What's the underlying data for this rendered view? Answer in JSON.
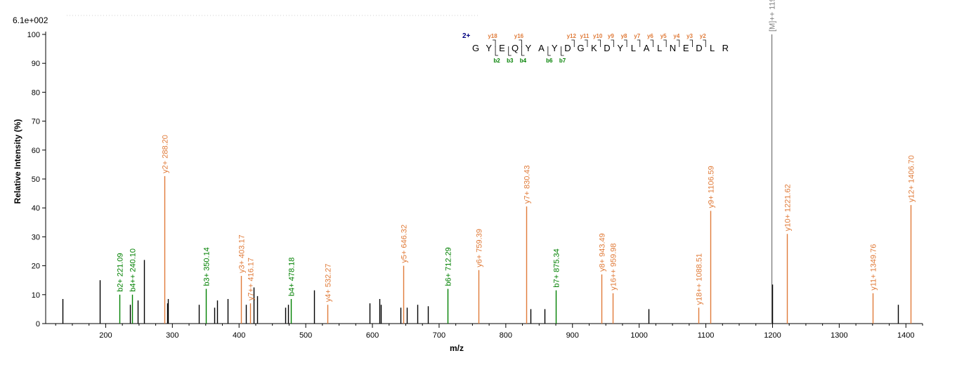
{
  "chart_data": {
    "type": "bar",
    "scale_label": "6.1e+002",
    "xlabel": "m/z",
    "ylabel": "Relative   Intensity (%)",
    "xlim": [
      110,
      1425
    ],
    "ylim": [
      0,
      100
    ],
    "x_ticks": [
      200,
      300,
      400,
      500,
      600,
      700,
      800,
      900,
      1000,
      1100,
      1200,
      1300,
      1400
    ],
    "y_ticks": [
      0,
      10,
      20,
      30,
      40,
      50,
      60,
      70,
      80,
      90,
      100
    ],
    "colors": {
      "b": "#008000",
      "y": "#e07b39",
      "precursor": "#808080",
      "unassigned": "#000000",
      "charge": "#000080"
    },
    "peaks": [
      {
        "mz": 135.0,
        "i": 8.5,
        "kind": "unassigned"
      },
      {
        "mz": 191.0,
        "i": 15.0,
        "kind": "unassigned"
      },
      {
        "mz": 221.09,
        "i": 10.0,
        "kind": "b",
        "label": "b2+ 221.09"
      },
      {
        "mz": 236.0,
        "i": 6.5,
        "kind": "unassigned"
      },
      {
        "mz": 240.1,
        "i": 10.0,
        "kind": "b",
        "label": "b4++ 240.10"
      },
      {
        "mz": 248.0,
        "i": 8.0,
        "kind": "unassigned"
      },
      {
        "mz": 258.0,
        "i": 22.0,
        "kind": "unassigned"
      },
      {
        "mz": 288.2,
        "i": 51.0,
        "kind": "y",
        "label": "y2+ 288.20"
      },
      {
        "mz": 292.0,
        "i": 7.0,
        "kind": "unassigned"
      },
      {
        "mz": 293.0,
        "i": 8.5,
        "kind": "unassigned"
      },
      {
        "mz": 340.0,
        "i": 6.5,
        "kind": "unassigned"
      },
      {
        "mz": 350.14,
        "i": 12.0,
        "kind": "b",
        "label": "b3+ 350.14"
      },
      {
        "mz": 363.0,
        "i": 5.5,
        "kind": "unassigned"
      },
      {
        "mz": 367.0,
        "i": 8.0,
        "kind": "unassigned"
      },
      {
        "mz": 383.0,
        "i": 8.5,
        "kind": "unassigned"
      },
      {
        "mz": 403.17,
        "i": 16.5,
        "kind": "y",
        "label": "y3+ 403.17"
      },
      {
        "mz": 410.0,
        "i": 6.5,
        "kind": "unassigned"
      },
      {
        "mz": 416.17,
        "i": 7.0,
        "kind": "y",
        "label": "y7++ 416.17"
      },
      {
        "mz": 422.0,
        "i": 12.5,
        "kind": "unassigned"
      },
      {
        "mz": 427.0,
        "i": 9.5,
        "kind": "unassigned"
      },
      {
        "mz": 469.0,
        "i": 5.5,
        "kind": "unassigned"
      },
      {
        "mz": 474.0,
        "i": 6.5,
        "kind": "unassigned"
      },
      {
        "mz": 478.18,
        "i": 8.5,
        "kind": "b",
        "label": "b4+ 478.18"
      },
      {
        "mz": 513.0,
        "i": 11.5,
        "kind": "unassigned"
      },
      {
        "mz": 532.27,
        "i": 6.5,
        "kind": "y",
        "label": "y4+ 532.27"
      },
      {
        "mz": 596.0,
        "i": 7.0,
        "kind": "unassigned"
      },
      {
        "mz": 610.0,
        "i": 8.5,
        "kind": "unassigned"
      },
      {
        "mz": 613.0,
        "i": 6.5,
        "kind": "unassigned"
      },
      {
        "mz": 642.0,
        "i": 5.5,
        "kind": "unassigned"
      },
      {
        "mz": 646.32,
        "i": 20.0,
        "kind": "y",
        "label": "y5+ 646.32"
      },
      {
        "mz": 652.0,
        "i": 5.5,
        "kind": "unassigned"
      },
      {
        "mz": 667.0,
        "i": 6.5,
        "kind": "unassigned"
      },
      {
        "mz": 683.0,
        "i": 6.0,
        "kind": "unassigned"
      },
      {
        "mz": 712.29,
        "i": 12.0,
        "kind": "b",
        "label": "b6+ 712.29"
      },
      {
        "mz": 759.39,
        "i": 18.5,
        "kind": "y",
        "label": "y6+ 759.39"
      },
      {
        "mz": 830.43,
        "i": 40.5,
        "kind": "y",
        "label": "y7+ 830.43"
      },
      {
        "mz": 837.0,
        "i": 5.0,
        "kind": "unassigned"
      },
      {
        "mz": 858.0,
        "i": 5.0,
        "kind": "unassigned"
      },
      {
        "mz": 875.34,
        "i": 11.5,
        "kind": "b",
        "label": "b7+ 875.34"
      },
      {
        "mz": 943.49,
        "i": 17.0,
        "kind": "y",
        "label": "y8+ 943.49"
      },
      {
        "mz": 959.98,
        "i": 10.5,
        "kind": "y",
        "label": "y16++ 959.98"
      },
      {
        "mz": 1014.0,
        "i": 5.0,
        "kind": "unassigned"
      },
      {
        "mz": 1088.51,
        "i": 5.5,
        "kind": "y",
        "label": "y18++ 1088.51"
      },
      {
        "mz": 1106.59,
        "i": 39.0,
        "kind": "y",
        "label": "y9+ 1106.59"
      },
      {
        "mz": 1198.55,
        "i": 100.0,
        "kind": "precursor",
        "label": "[M]++ 1198.55"
      },
      {
        "mz": 1199.0,
        "i": 13.5,
        "kind": "unassigned"
      },
      {
        "mz": 1221.62,
        "i": 31.0,
        "kind": "y",
        "label": "y10+ 1221.62"
      },
      {
        "mz": 1349.76,
        "i": 10.5,
        "kind": "y",
        "label": "y11+ 1349.76"
      },
      {
        "mz": 1388.0,
        "i": 6.5,
        "kind": "unassigned"
      },
      {
        "mz": 1406.7,
        "i": 41.0,
        "kind": "y",
        "label": "y12+ 1406.70"
      }
    ],
    "sequence": {
      "charge": "2+",
      "residues": [
        "G",
        "Y",
        "E",
        "Q",
        "Y",
        "A",
        "Y",
        "D",
        "G",
        "K",
        "D",
        "Y",
        "L",
        "A",
        "L",
        "N",
        "E",
        "D",
        "L",
        "R"
      ],
      "y_ions": [
        {
          "after": 2,
          "label": "y18"
        },
        {
          "after": 4,
          "label": "y16"
        },
        {
          "after": 8,
          "label": "y12"
        },
        {
          "after": 9,
          "label": "y11"
        },
        {
          "after": 10,
          "label": "y10"
        },
        {
          "after": 11,
          "label": "y9"
        },
        {
          "after": 12,
          "label": "y8"
        },
        {
          "after": 13,
          "label": "y7"
        },
        {
          "after": 14,
          "label": "y6"
        },
        {
          "after": 15,
          "label": "y5"
        },
        {
          "after": 16,
          "label": "y4"
        },
        {
          "after": 17,
          "label": "y3"
        },
        {
          "after": 18,
          "label": "y2"
        }
      ],
      "b_ions": [
        {
          "after": 2,
          "label": "b2"
        },
        {
          "after": 3,
          "label": "b3"
        },
        {
          "after": 4,
          "label": "b4"
        },
        {
          "after": 6,
          "label": "b6"
        },
        {
          "after": 7,
          "label": "b7"
        }
      ]
    }
  }
}
